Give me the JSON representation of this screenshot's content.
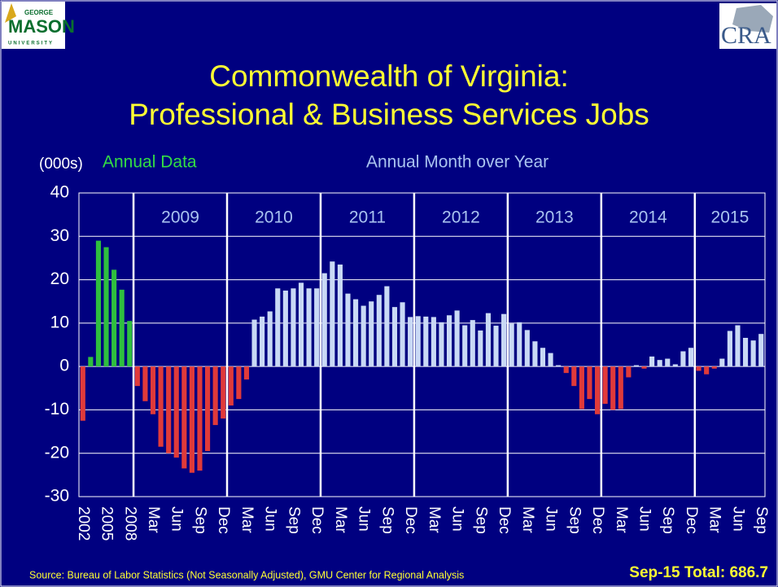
{
  "chart_data": {
    "type": "bar",
    "title_lines": [
      "Commonwealth of Virginia:",
      "Professional & Business Services Jobs"
    ],
    "y_unit_label": "(000s)",
    "logos": {
      "left": [
        "GEORGE",
        "MASON",
        "UNIVERSITY"
      ],
      "right": "CRA"
    },
    "categories": [
      "2002",
      null,
      null,
      "2005",
      null,
      null,
      "2008",
      null,
      null,
      "Mar",
      null,
      null,
      "Jun",
      null,
      null,
      "Sep",
      null,
      null,
      "Dec",
      null,
      null,
      "Mar",
      null,
      null,
      "Jun",
      null,
      null,
      "Sep",
      null,
      null,
      "Dec",
      null,
      null,
      "Mar",
      null,
      null,
      "Jun",
      null,
      null,
      "Sep",
      null,
      null,
      "Dec",
      null,
      null,
      "Mar",
      null,
      null,
      "Jun",
      null,
      null,
      "Sep",
      null,
      null,
      "Dec",
      null,
      null,
      "Mar",
      null,
      null,
      "Jun",
      null,
      null,
      "Sep",
      null,
      null,
      "Dec",
      null,
      null,
      "Mar",
      null,
      null,
      "Jun",
      null,
      null,
      "Sep",
      null,
      null,
      "Dec",
      null,
      null,
      "Mar",
      null,
      null,
      "Jun",
      null,
      null,
      "Sep"
    ],
    "year_labels": [
      "2009",
      "2010",
      "2011",
      "2012",
      "2013",
      "2014",
      "2015"
    ],
    "series": [
      {
        "name": "Annual Data",
        "color": "#2fbf3f",
        "values": [
          -12.5,
          2.2,
          29,
          27.5,
          22.3,
          17.7,
          10.5,
          null,
          null,
          null,
          null,
          null,
          null,
          null,
          null,
          null,
          null,
          null,
          null,
          null,
          null,
          null,
          null,
          null,
          null,
          null,
          null,
          null,
          null,
          null,
          null,
          null,
          null,
          null,
          null,
          null,
          null,
          null,
          null,
          null,
          null,
          null,
          null,
          null,
          null,
          null,
          null,
          null,
          null,
          null,
          null,
          null,
          null,
          null,
          null,
          null,
          null,
          null,
          null,
          null,
          null,
          null,
          null,
          null,
          null,
          null,
          null,
          null,
          null,
          null,
          null,
          null,
          null,
          null,
          null,
          null,
          null,
          null,
          null,
          null,
          null,
          null,
          null,
          null,
          null,
          null,
          null,
          null
        ]
      },
      {
        "name": "Annual Month over Year",
        "color": "#c9d9f5",
        "values": [
          null,
          null,
          null,
          null,
          null,
          null,
          null,
          -4.5,
          -8,
          -11,
          -18.5,
          -20,
          -21,
          -23.5,
          -24.5,
          -24,
          -19.5,
          -13.5,
          -12,
          -9,
          -7.5,
          -3,
          10.8,
          11.5,
          12.7,
          18,
          17.5,
          18,
          19.3,
          18,
          18,
          21.5,
          24.2,
          23.5,
          16.8,
          15.5,
          14,
          15,
          16.5,
          18.5,
          13.7,
          14.8,
          11.4,
          11.6,
          11.5,
          11.4,
          10.2,
          11.8,
          12.9,
          9.5,
          10.7,
          8.3,
          12.3,
          9.4,
          12.1,
          9.9,
          10.2,
          8.4,
          5.8,
          4.3,
          3.1,
          0.3,
          -1.5,
          -4.5,
          -9.8,
          -7.5,
          -11,
          -8.6,
          -10,
          -9.8,
          -2.5,
          0.3,
          -0.5,
          2.3,
          1.5,
          1.8,
          0.5,
          3.5,
          4.3,
          -1,
          -1.8,
          -0.5,
          1.8,
          8.2,
          9.5,
          6.6,
          6,
          7.5
        ]
      }
    ],
    "negative_color": "#e03a3a",
    "ylim": [
      -30,
      40
    ],
    "yticks": [
      -30,
      -20,
      -10,
      0,
      10,
      20,
      30,
      40
    ],
    "grid": true,
    "source": "Source: Bureau of Labor Statistics (Not Seasonally Adjusted), GMU Center for Regional Analysis",
    "total_note": "Sep-15 Total: 686.7"
  }
}
